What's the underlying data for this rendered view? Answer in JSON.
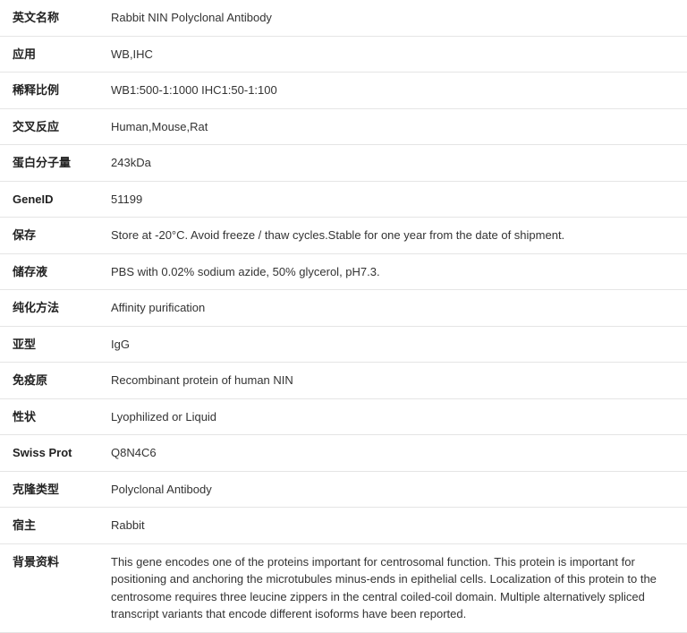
{
  "rows": [
    {
      "label": "英文名称",
      "value": "Rabbit NIN Polyclonal Antibody"
    },
    {
      "label": "应用",
      "value": "WB,IHC"
    },
    {
      "label": "稀释比例",
      "value": "WB1:500-1:1000 IHC1:50-1:100"
    },
    {
      "label": "交叉反应",
      "value": "Human,Mouse,Rat"
    },
    {
      "label": "蛋白分子量",
      "value": "243kDa"
    },
    {
      "label": "GeneID",
      "value": "51199"
    },
    {
      "label": "保存",
      "value": "Store at -20°C. Avoid freeze / thaw cycles.Stable for one year from the date of shipment."
    },
    {
      "label": "储存液",
      "value": "PBS with 0.02% sodium azide, 50% glycerol, pH7.3."
    },
    {
      "label": "纯化方法",
      "value": "Affinity purification"
    },
    {
      "label": "亚型",
      "value": "IgG"
    },
    {
      "label": "免疫原",
      "value": "Recombinant protein of human NIN"
    },
    {
      "label": "性状",
      "value": "Lyophilized or Liquid"
    },
    {
      "label": "Swiss Prot",
      "value": "Q8N4C6"
    },
    {
      "label": "克隆类型",
      "value": "Polyclonal Antibody"
    },
    {
      "label": "宿主",
      "value": "Rabbit"
    },
    {
      "label": "背景资料",
      "value": "This gene encodes one of the proteins important for centrosomal function. This protein is important for positioning and anchoring the microtubules minus-ends in epithelial cells. Localization of this protein to the centrosome requires three leucine zippers in the central coiled-coil domain. Multiple alternatively spliced transcript variants that encode different isoforms have been reported."
    }
  ]
}
